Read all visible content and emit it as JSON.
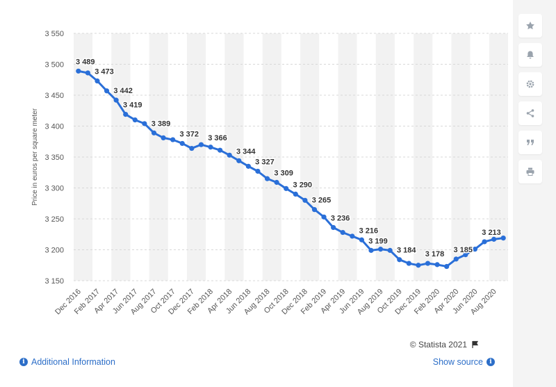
{
  "chart_data": {
    "type": "line",
    "ylabel": "Price in euros per square meter",
    "ylim": [
      3150,
      3550
    ],
    "yticks": [
      3150,
      3200,
      3250,
      3300,
      3350,
      3400,
      3450,
      3500,
      3550
    ],
    "ytick_labels": [
      "3 150",
      "3 200",
      "3 250",
      "3 300",
      "3 350",
      "3 400",
      "3 450",
      "3 500",
      "3 550"
    ],
    "x_tick_labels": [
      "Dec 2016",
      "Feb 2017",
      "Apr 2017",
      "Jun 2017",
      "Aug 2017",
      "Oct 2017",
      "Dec 2017",
      "Feb 2018",
      "Apr 2018",
      "Jun 2018",
      "Aug 2018",
      "Oct 2018",
      "Dec 2018",
      "Feb 2019",
      "Apr 2019",
      "Jun 2019",
      "Aug 2019",
      "Oct 2019",
      "Dec 2019",
      "Feb 2020",
      "Apr 2020",
      "Jun 2020",
      "Aug 2020"
    ],
    "x": [
      "Dec 2016",
      "Jan 2017",
      "Feb 2017",
      "Mar 2017",
      "Apr 2017",
      "May 2017",
      "Jun 2017",
      "Jul 2017",
      "Aug 2017",
      "Sep 2017",
      "Oct 2017",
      "Nov 2017",
      "Dec 2017",
      "Jan 2018",
      "Feb 2018",
      "Mar 2018",
      "Apr 2018",
      "May 2018",
      "Jun 2018",
      "Jul 2018",
      "Aug 2018",
      "Sep 2018",
      "Oct 2018",
      "Nov 2018",
      "Dec 2018",
      "Jan 2019",
      "Feb 2019",
      "Mar 2019",
      "Apr 2019",
      "May 2019",
      "Jun 2019",
      "Jul 2019",
      "Aug 2019",
      "Sep 2019",
      "Oct 2019",
      "Nov 2019",
      "Dec 2019",
      "Jan 2020",
      "Feb 2020",
      "Mar 2020",
      "Apr 2020",
      "May 2020",
      "Jun 2020",
      "Jul 2020",
      "Aug 2020",
      "Sep 2020"
    ],
    "series": [
      {
        "values": [
          3489,
          3486,
          3473,
          3457,
          3442,
          3419,
          3410,
          3404,
          3389,
          3381,
          3378,
          3372,
          3364,
          3370,
          3366,
          3361,
          3353,
          3344,
          3335,
          3327,
          3315,
          3309,
          3299,
          3290,
          3280,
          3265,
          3253,
          3236,
          3228,
          3222,
          3216,
          3199,
          3201,
          3199,
          3184,
          3178,
          3175,
          3178,
          3176,
          3173,
          3185,
          3192,
          3201,
          3213,
          3217,
          3219
        ],
        "color": "#2a6fd8"
      }
    ],
    "data_labels": [
      {
        "index": 0,
        "text": "3 489"
      },
      {
        "index": 2,
        "text": "3 473"
      },
      {
        "index": 4,
        "text": "3 442"
      },
      {
        "index": 5,
        "text": "3 419"
      },
      {
        "index": 8,
        "text": "3 389"
      },
      {
        "index": 11,
        "text": "3 372"
      },
      {
        "index": 14,
        "text": "3 366"
      },
      {
        "index": 17,
        "text": "3 344"
      },
      {
        "index": 19,
        "text": "3 327"
      },
      {
        "index": 21,
        "text": "3 309"
      },
      {
        "index": 23,
        "text": "3 290"
      },
      {
        "index": 25,
        "text": "3 265"
      },
      {
        "index": 27,
        "text": "3 236"
      },
      {
        "index": 30,
        "text": "3 216"
      },
      {
        "index": 31,
        "text": "3 199"
      },
      {
        "index": 34,
        "text": "3 184"
      },
      {
        "index": 37,
        "text": "3 178"
      },
      {
        "index": 40,
        "text": "3 185"
      },
      {
        "index": 43,
        "text": "3 213"
      }
    ],
    "grid": true,
    "alternating_column_bands": true
  },
  "credit": {
    "text": "© Statista 2021",
    "icon": "flag-icon"
  },
  "footer": {
    "additional_info": "Additional Information",
    "show_source": "Show source"
  },
  "toolbar": [
    {
      "name": "star-icon"
    },
    {
      "name": "bell-icon"
    },
    {
      "name": "gear-icon"
    },
    {
      "name": "share-icon"
    },
    {
      "name": "quote-icon"
    },
    {
      "name": "print-icon"
    }
  ]
}
